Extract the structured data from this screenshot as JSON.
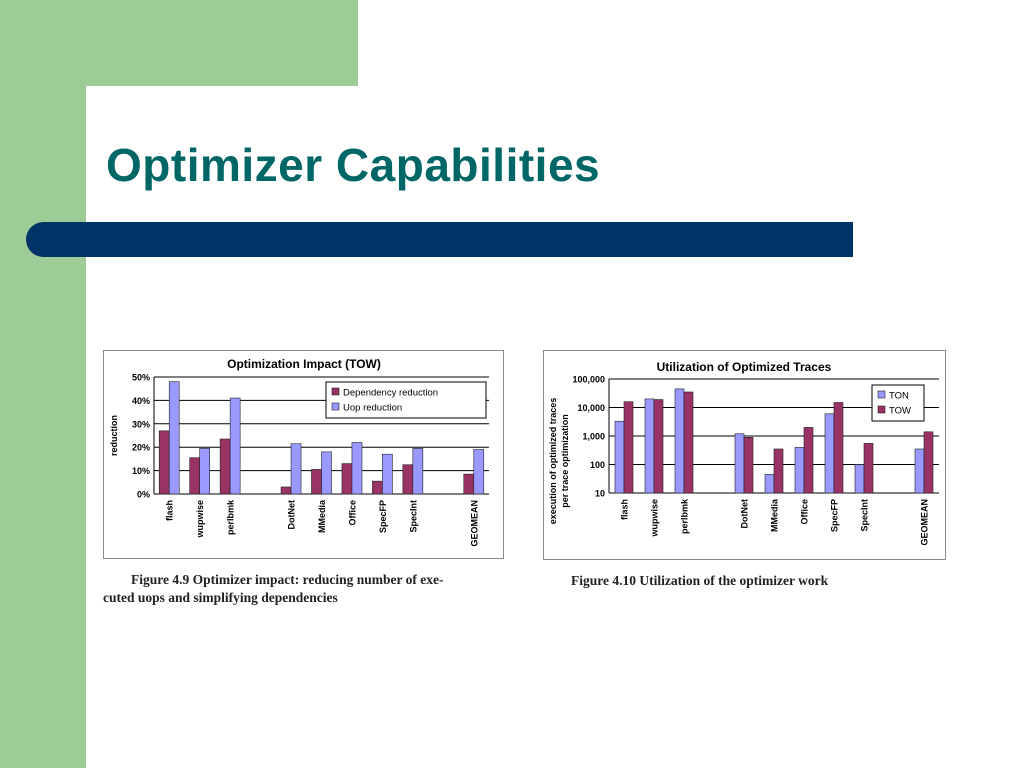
{
  "slide": {
    "title": "Optimizer Capabilities",
    "colors": {
      "band": "#9dcc96",
      "title": "#006666",
      "bar": "#003366"
    }
  },
  "captions": {
    "fig1_line1": "Figure 4.9 Optimizer impact: reducing number of exe-",
    "fig1_line2": "cuted uops and simplifying dependencies",
    "fig2": "Figure 4.10 Utilization of the optimizer work"
  },
  "chart_data": [
    {
      "type": "bar",
      "title": "Optimization Impact (TOW)",
      "ylabel": "reduction",
      "xlabel": "",
      "categories": [
        "flash",
        "wupwise",
        "perlbmk",
        "",
        "DotNet",
        "MMedia",
        "Office",
        "SpecFP",
        "SpecInt",
        "",
        "GEOMEAN"
      ],
      "series": [
        {
          "name": "Dependency reduction",
          "color": "#993366",
          "values": [
            27,
            15.5,
            23.5,
            null,
            3,
            10.5,
            13,
            5.5,
            12.5,
            null,
            8.5
          ]
        },
        {
          "name": "Uop reduction",
          "color": "#9999ff",
          "values": [
            48,
            19.5,
            41,
            null,
            21.5,
            18,
            22,
            17,
            19.5,
            null,
            19
          ]
        }
      ],
      "ylim": [
        0,
        50
      ],
      "yticks": [
        "0%",
        "10%",
        "20%",
        "30%",
        "40%",
        "50%"
      ],
      "ytick_values": [
        0,
        10,
        20,
        30,
        40,
        50
      ],
      "grid": true,
      "legend": "top-right"
    },
    {
      "type": "bar",
      "title": "Utilization of Optimized Traces",
      "ylabel_line1": "execution of optimized traces",
      "ylabel_line2": "per trace  optimization",
      "xlabel": "",
      "scale": "log",
      "categories": [
        "flash",
        "wupwise",
        "perlbmk",
        "",
        "DotNet",
        "MMedia",
        "Office",
        "SpecFP",
        "SpecInt",
        "",
        "GEOMEAN"
      ],
      "series": [
        {
          "name": "TON",
          "color": "#9999ff",
          "values": [
            3300,
            20000,
            45000,
            null,
            1200,
            45,
            400,
            6000,
            100,
            null,
            350
          ]
        },
        {
          "name": "TOW",
          "color": "#993366",
          "values": [
            16000,
            19000,
            35000,
            null,
            900,
            350,
            2000,
            15000,
            550,
            null,
            1400
          ]
        }
      ],
      "ylim": [
        10,
        100000
      ],
      "yticks": [
        "10",
        "100",
        "1,000",
        "10,000",
        "100,000"
      ],
      "ytick_values": [
        10,
        100,
        1000,
        10000,
        100000
      ],
      "grid": true,
      "legend": "top-right"
    }
  ]
}
